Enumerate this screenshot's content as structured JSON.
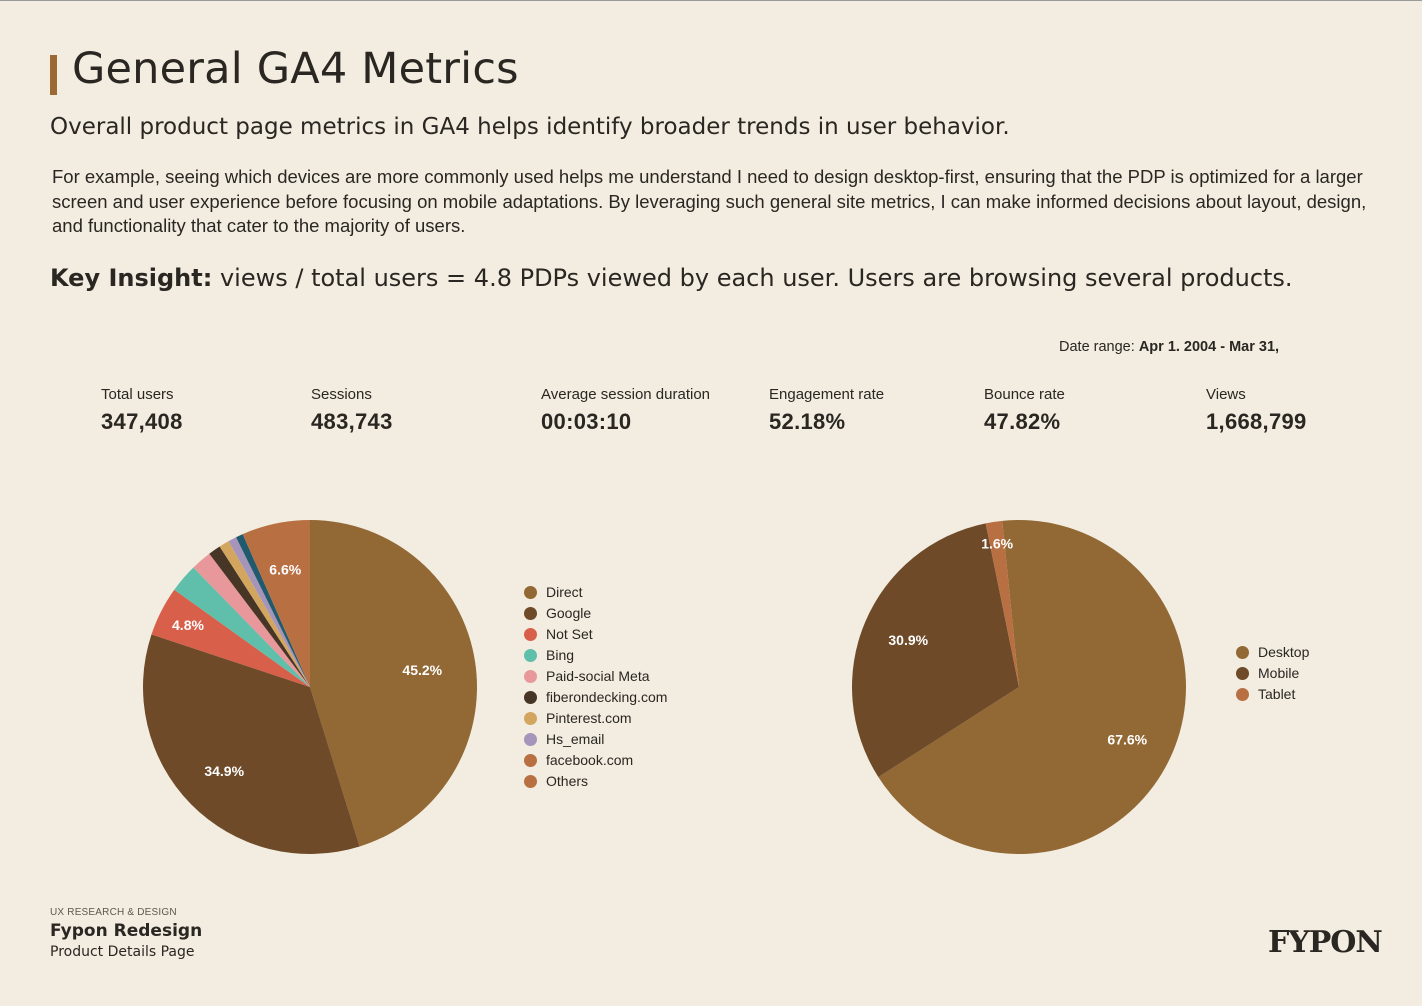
{
  "header": {
    "title": "General GA4 Metrics",
    "subtitle": "Overall product page metrics in GA4 helps identify broader trends in user behavior.",
    "body": "For example, seeing which devices are more commonly used helps me understand I need to design desktop-first, ensuring that the PDP is optimized for a larger screen and user experience before focusing on mobile adaptations. By leveraging such general site metrics, I can make informed decisions about layout, design, and functionality that cater to the majority of users.",
    "insight_label": "Key Insight:",
    "insight_text": " views / total users = 4.8 PDPs viewed by each user. Users are browsing several products."
  },
  "date_range": {
    "label": "Date range: ",
    "value": "Apr 1. 2004 - Mar 31,"
  },
  "metrics": [
    {
      "label": "Total users",
      "value": "347,408"
    },
    {
      "label": "Sessions",
      "value": "483,743"
    },
    {
      "label": "Average session duration",
      "value": "00:03:10"
    },
    {
      "label": "Engagement rate",
      "value": "52.18%"
    },
    {
      "label": "Bounce rate",
      "value": "47.82%"
    },
    {
      "label": "Views",
      "value": "1,668,799"
    }
  ],
  "chart_data": [
    {
      "type": "pie",
      "title": "",
      "categories": [
        "Direct",
        "Google",
        "Not Set",
        "Bing",
        "Paid-social Meta",
        "fiberondecking.com",
        "Pinterest.com",
        "Hs_email",
        "facebook.com",
        "Others"
      ],
      "values": [
        45.2,
        34.9,
        4.8,
        2.8,
        2.0,
        1.2,
        1.0,
        0.8,
        0.7,
        6.6
      ],
      "data_labels": [
        "45.2%",
        "34.9%",
        "4.8%",
        "",
        "",
        "",
        "",
        "",
        "",
        "6.6%"
      ],
      "colors": [
        "#926834",
        "#6e4a28",
        "#d8604b",
        "#5fbfaa",
        "#e8979a",
        "#473525",
        "#d3a660",
        "#a695ba",
        "#215a6d",
        "#b87043"
      ],
      "legend_colors": [
        "#926834",
        "#6e4a28",
        "#d8604b",
        "#5fbfaa",
        "#e8979a",
        "#473525",
        "#d3a660",
        "#a695ba",
        "#b87043",
        "#b87043"
      ],
      "legend_position": "right"
    },
    {
      "type": "pie",
      "title": "",
      "categories": [
        "Desktop",
        "Mobile",
        "Tablet"
      ],
      "values": [
        67.6,
        30.9,
        1.6
      ],
      "data_labels": [
        "67.6%",
        "30.9%",
        "1.6%"
      ],
      "colors": [
        "#926834",
        "#6e4a28",
        "#b87043"
      ],
      "legend_colors": [
        "#926834",
        "#6e4a28",
        "#b87043"
      ],
      "legend_position": "right"
    }
  ],
  "footer": {
    "kicker": "UX RESEARCH & DESIGN",
    "title": "Fypon Redesign",
    "subtitle": "Product Details Page",
    "logo": "FYPON"
  }
}
